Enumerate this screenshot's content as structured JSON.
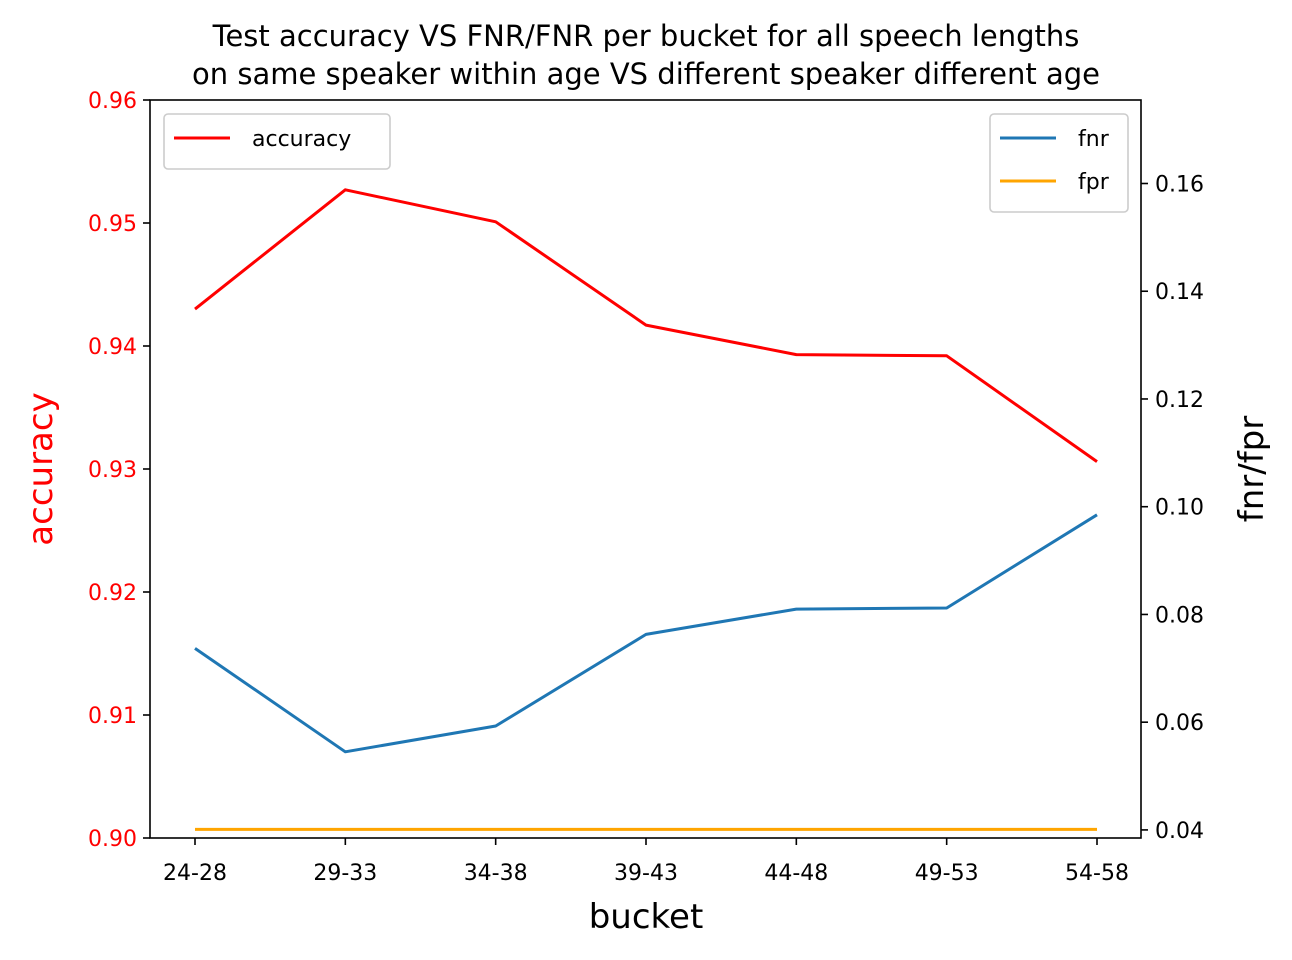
{
  "chart_data": {
    "type": "line",
    "title_lines": [
      "Test accuracy VS FNR/FNR per bucket for all speech lengths",
      "on same speaker within age VS different speaker different age"
    ],
    "xlabel": "bucket",
    "ylabel_left": "accuracy",
    "ylabel_right": "fnr/fpr",
    "categories": [
      "24-28",
      "29-33",
      "34-38",
      "39-43",
      "44-48",
      "49-53",
      "54-58"
    ],
    "y_left": {
      "lim": [
        0.9,
        0.96
      ],
      "ticks": [
        0.9,
        0.91,
        0.92,
        0.93,
        0.94,
        0.95,
        0.96
      ],
      "tick_labels": [
        "0.90",
        "0.91",
        "0.92",
        "0.93",
        "0.94",
        "0.95",
        "0.96"
      ]
    },
    "y_right": {
      "lim": [
        0.0385,
        0.1755
      ],
      "ticks": [
        0.04,
        0.06,
        0.08,
        0.1,
        0.12,
        0.14,
        0.16
      ],
      "tick_labels": [
        "0.04",
        "0.06",
        "0.08",
        "0.10",
        "0.12",
        "0.14",
        "0.16"
      ]
    },
    "series": [
      {
        "name": "accuracy",
        "axis": "left",
        "color": "#ff0000",
        "values": [
          0.943,
          0.9527,
          0.9501,
          0.9417,
          0.9393,
          0.9392,
          0.9306
        ]
      },
      {
        "name": "fnr",
        "axis": "right",
        "color": "#1f77b4",
        "values": [
          0.0737,
          0.0545,
          0.0593,
          0.0763,
          0.081,
          0.0812,
          0.0985
        ]
      },
      {
        "name": "fpr",
        "axis": "right",
        "color": "#ffa500",
        "values": [
          0.0401,
          0.0401,
          0.0401,
          0.0401,
          0.0401,
          0.0401,
          0.0401
        ]
      }
    ],
    "legends": [
      {
        "placement": "upper left",
        "entries": [
          "accuracy"
        ]
      },
      {
        "placement": "upper right",
        "entries": [
          "fnr",
          "fpr"
        ]
      }
    ],
    "left_axis_color": "#ff0000",
    "grid": false
  }
}
